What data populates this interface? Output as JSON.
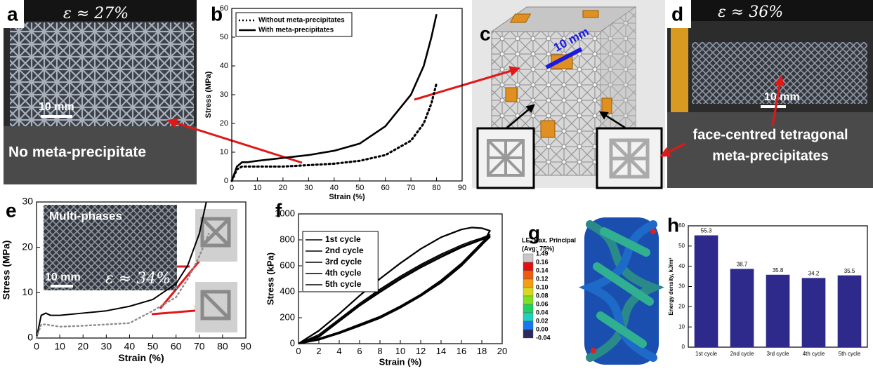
{
  "panel_labels": [
    "a",
    "b",
    "c",
    "d",
    "e",
    "f",
    "g",
    "h"
  ],
  "photo_a": {
    "strain": "ε ≈ 27%",
    "scale": "10 mm",
    "caption": "No meta-precipitate"
  },
  "model_c": {
    "scale": "10 mm"
  },
  "photo_d": {
    "strain": "ε ≈ 36%",
    "scale": "10 mm",
    "caption": [
      "face-centred tetragonal",
      "meta-precipitates"
    ]
  },
  "inset_e": {
    "caption": "Multi-phases",
    "scale": "10 mm",
    "strain": "ε ≈ 34%"
  },
  "colorbar_g": {
    "title": "LE, Max. Principal",
    "subtitle": "(Avg: 75%)",
    "ticks": [
      1.49,
      0.16,
      0.14,
      0.12,
      {
        "value": 0.1,
        "label": "0.10"
      },
      0.08,
      0.06,
      0.04,
      0.02,
      {
        "value": 0.0,
        "label": "0.00"
      },
      -0.04
    ],
    "colors": [
      "#c8c8c8",
      "#e01010",
      "#f05a10",
      "#f0a010",
      "#d8d820",
      "#80e020",
      "#20d060",
      "#20d0c0",
      "#1878f0",
      "#2a2a60"
    ]
  },
  "chart_data": [
    {
      "type": "line",
      "xlabel": "Strain (%)",
      "ylabel": "Stress (MPa)",
      "xlim": [
        0,
        90
      ],
      "xticks": [
        0,
        10,
        20,
        30,
        40,
        50,
        60,
        70,
        80,
        90
      ],
      "ylim": [
        0,
        60
      ],
      "yticks": [
        0,
        10,
        20,
        30,
        40,
        50,
        60
      ],
      "legend": "upper left",
      "x": [
        0,
        2,
        4,
        6,
        10,
        20,
        30,
        40,
        50,
        60,
        70,
        75,
        78,
        80
      ],
      "series": [
        {
          "name": "Without meta-precipitates",
          "color": "#000000",
          "style": "dotted",
          "values": [
            0,
            4,
            5,
            5,
            5,
            5,
            5.5,
            6,
            7,
            9,
            14,
            20,
            27,
            34
          ]
        },
        {
          "name": "With meta-precipitates",
          "color": "#000000",
          "style": "solid",
          "values": [
            0,
            5,
            6.5,
            6.5,
            7,
            8,
            9,
            10.5,
            13,
            19,
            30,
            40,
            50,
            58
          ]
        }
      ]
    },
    {
      "type": "line",
      "xlabel": "Strain (%)",
      "ylabel": "Stress (MPa)",
      "xlim": [
        0,
        90
      ],
      "xticks": [
        0,
        10,
        20,
        30,
        40,
        50,
        60,
        70,
        80,
        90
      ],
      "ylim": [
        0,
        30
      ],
      "yticks": [
        0,
        10,
        20,
        30
      ],
      "series": [
        {
          "color": "#000000",
          "style": "solid",
          "x": [
            0,
            2,
            4,
            6,
            10,
            20,
            30,
            40,
            50,
            60,
            65,
            70,
            73
          ],
          "values": [
            0,
            5,
            5.5,
            5,
            5,
            5.5,
            6,
            7,
            8.5,
            12,
            16,
            23,
            30
          ]
        },
        {
          "color": "#8c8c8c",
          "style": "dotted",
          "x": [
            0,
            2,
            4,
            10,
            20,
            30,
            40,
            50,
            60,
            65,
            70,
            74
          ],
          "values": [
            0,
            3,
            3,
            2.5,
            2.7,
            3,
            3.3,
            6,
            9,
            13,
            18,
            23
          ]
        }
      ]
    },
    {
      "type": "line",
      "xlabel": "Strain (%)",
      "ylabel": "Stress (kPa)",
      "xlim": [
        0,
        20
      ],
      "xticks": [
        0,
        2,
        4,
        6,
        8,
        10,
        12,
        14,
        16,
        18,
        20
      ],
      "ylim": [
        0,
        1000
      ],
      "yticks": [
        0,
        200,
        400,
        600,
        800,
        1000
      ],
      "legend": "upper left",
      "x": [
        0,
        2,
        4,
        6,
        8,
        10,
        12,
        14,
        16,
        17,
        18,
        18.8,
        18,
        16,
        14,
        12,
        10,
        8,
        6,
        4,
        2,
        0
      ],
      "series": [
        {
          "name": "1st cycle",
          "color": "#000000",
          "style": "solid",
          "values": [
            0,
            100,
            230,
            370,
            500,
            620,
            730,
            820,
            880,
            895,
            890,
            870,
            760,
            600,
            470,
            370,
            280,
            200,
            140,
            80,
            30,
            0
          ]
        },
        {
          "name": "2nd cycle",
          "color": "#000000",
          "style": "solid",
          "values": [
            0,
            70,
            190,
            310,
            420,
            520,
            610,
            690,
            760,
            790,
            815,
            840,
            780,
            620,
            490,
            380,
            290,
            210,
            150,
            90,
            40,
            0
          ]
        },
        {
          "name": "3rd cycle",
          "color": "#000000",
          "style": "solid",
          "values": [
            0,
            60,
            180,
            300,
            410,
            510,
            600,
            680,
            750,
            780,
            810,
            830,
            770,
            610,
            480,
            375,
            285,
            205,
            145,
            85,
            35,
            0
          ]
        },
        {
          "name": "4th cycle",
          "color": "#000000",
          "style": "solid",
          "values": [
            0,
            55,
            175,
            295,
            400,
            500,
            590,
            670,
            745,
            775,
            805,
            825,
            765,
            605,
            475,
            370,
            280,
            200,
            140,
            80,
            32,
            0
          ]
        },
        {
          "name": "5th cycle",
          "color": "#000000",
          "style": "solid",
          "values": [
            0,
            50,
            170,
            290,
            395,
            495,
            585,
            665,
            740,
            770,
            800,
            820,
            760,
            600,
            470,
            365,
            275,
            195,
            135,
            78,
            30,
            0
          ]
        }
      ]
    },
    {
      "type": "bar",
      "ylabel": "Energy density, kJ/m³",
      "categories": [
        "1st cycle",
        "2nd cycle",
        "3rd cycle",
        "4th cycle",
        "5th cycle"
      ],
      "values": [
        55.3,
        38.7,
        35.8,
        34.2,
        35.5
      ],
      "color": "#2e2a8c",
      "ylim": [
        0,
        60
      ],
      "yticks": [
        0,
        10,
        20,
        30,
        40,
        50,
        60
      ]
    }
  ]
}
